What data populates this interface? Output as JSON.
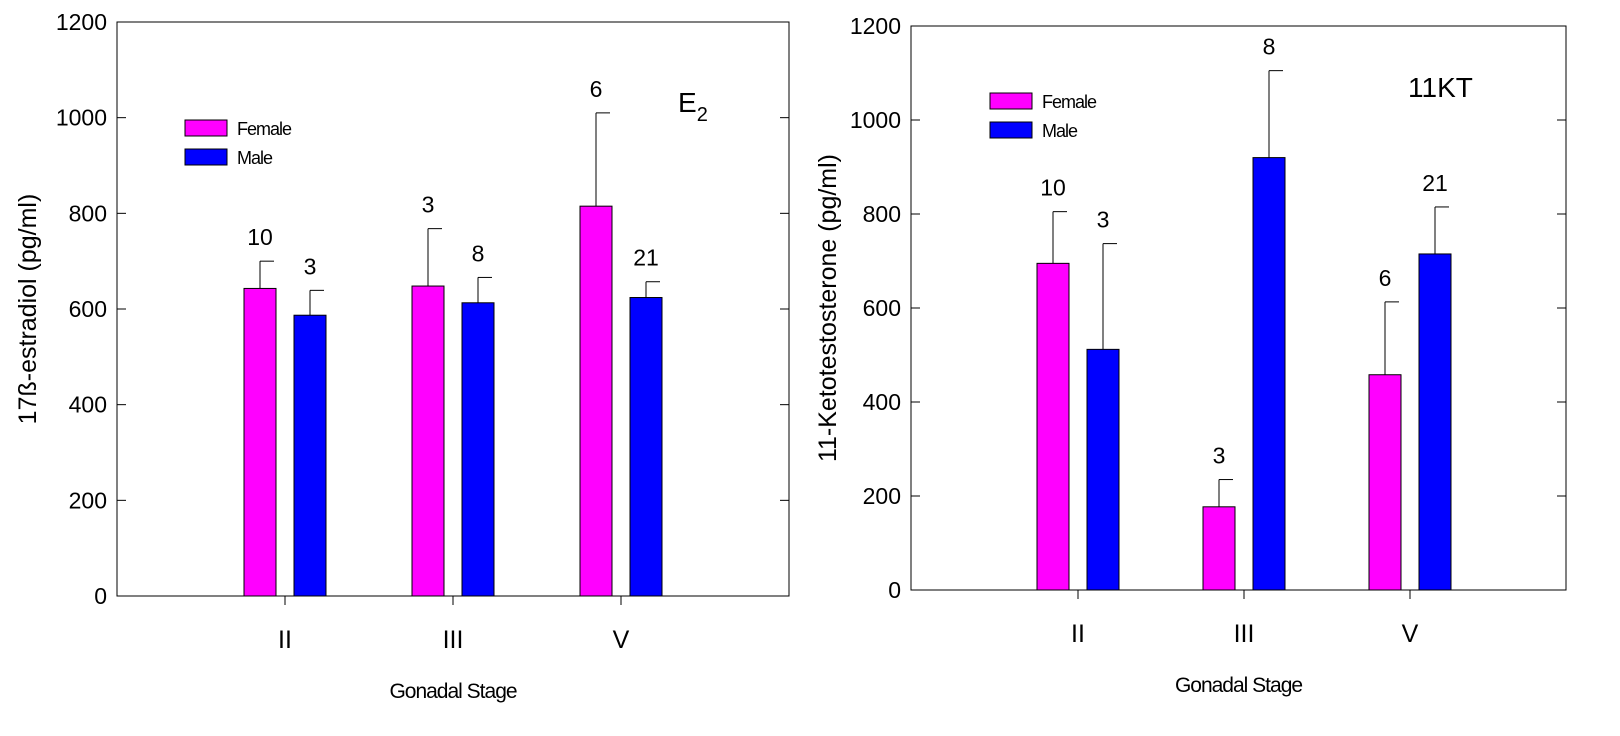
{
  "chart_data": [
    {
      "type": "bar",
      "title": "",
      "annotation": {
        "main": "E",
        "sub": "2"
      },
      "xlabel": "Gonadal Stage",
      "ylabel": "17ß-estradiol (pg/ml)",
      "ylim": [
        0,
        1200
      ],
      "yticks": [
        "0",
        "200",
        "400",
        "600",
        "800",
        "1000",
        "1200"
      ],
      "categories": [
        "II",
        "III",
        "V"
      ],
      "legend_position": "top-left",
      "series": [
        {
          "name": "Female",
          "color": "#ff00ff",
          "values": [
            643,
            648,
            815
          ],
          "errors": [
            57,
            120,
            195
          ],
          "n": [
            "10",
            "3",
            "6"
          ]
        },
        {
          "name": "Male",
          "color": "#0000ff",
          "values": [
            587,
            613,
            624
          ],
          "errors": [
            52,
            53,
            33
          ],
          "n": [
            "3",
            "8",
            "21"
          ]
        }
      ]
    },
    {
      "type": "bar",
      "title": "",
      "annotation": {
        "main": "11KT",
        "sub": ""
      },
      "xlabel": "Gonadal Stage",
      "ylabel": "11-Ketotestosterone (pg/ml)",
      "ylim": [
        0,
        1200
      ],
      "yticks": [
        "0",
        "200",
        "400",
        "600",
        "800",
        "1000",
        "1200"
      ],
      "categories": [
        "II",
        "III",
        "V"
      ],
      "legend_position": "top-left",
      "series": [
        {
          "name": "Female",
          "color": "#ff00ff",
          "values": [
            695,
            177,
            458
          ],
          "errors": [
            110,
            58,
            155
          ],
          "n": [
            "10",
            "3",
            "6"
          ]
        },
        {
          "name": "Male",
          "color": "#0000ff",
          "values": [
            512,
            920,
            715
          ],
          "errors": [
            225,
            185,
            100
          ],
          "n": [
            "3",
            "8",
            "21"
          ]
        }
      ]
    }
  ]
}
